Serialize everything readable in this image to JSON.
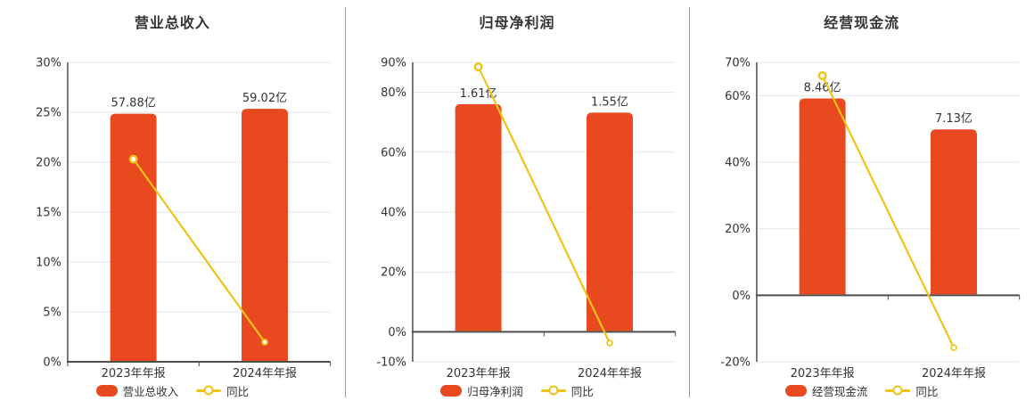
{
  "colors": {
    "bar": "#e8491f",
    "line": "#f0c416",
    "grid": "#e0e6f2",
    "axis": "#4d4d4d",
    "text": "#333333",
    "divider": "#9a9a9a"
  },
  "chart_data": [
    {
      "type": "bar+line",
      "title": "营业总收入",
      "categories": [
        "2023年年报",
        "2024年年报"
      ],
      "bar_series": {
        "name": "营业总收入",
        "unit": "亿",
        "values": [
          57.88,
          59.02
        ],
        "labels": [
          "57.88亿",
          "59.02亿"
        ]
      },
      "line_series": {
        "name": "同比",
        "values_pct": [
          20.3,
          1.97
        ]
      },
      "y_axis": {
        "min": 0,
        "max": 30,
        "ticks": [
          30,
          25,
          20,
          15,
          10,
          5,
          0
        ],
        "labels": [
          "30%",
          "25%",
          "20%",
          "15%",
          "10%",
          "5%",
          "0%"
        ]
      },
      "legend": [
        "营业总收入",
        "同比"
      ]
    },
    {
      "type": "bar+line",
      "title": "归母净利润",
      "categories": [
        "2023年年报",
        "2024年年报"
      ],
      "bar_series": {
        "name": "归母净利润",
        "unit": "亿",
        "values": [
          1.61,
          1.55
        ],
        "labels": [
          "1.61亿",
          "1.55亿"
        ]
      },
      "line_series": {
        "name": "同比",
        "values_pct": [
          88.5,
          -3.73
        ]
      },
      "y_axis": {
        "min": -10,
        "max": 90,
        "ticks": [
          90,
          80,
          60,
          40,
          20,
          0,
          -10
        ],
        "labels": [
          "90%",
          "80%",
          "60%",
          "40%",
          "20%",
          "0%",
          "-10%"
        ]
      },
      "legend": [
        "归母净利润",
        "同比"
      ]
    },
    {
      "type": "bar+line",
      "title": "经营现金流",
      "categories": [
        "2023年年报",
        "2024年年报"
      ],
      "bar_series": {
        "name": "经营现金流",
        "unit": "亿",
        "values": [
          8.46,
          7.13
        ],
        "labels": [
          "8.46亿",
          "7.13亿"
        ]
      },
      "line_series": {
        "name": "同比",
        "values_pct": [
          66.0,
          -15.72
        ]
      },
      "y_axis": {
        "min": -20,
        "max": 70,
        "ticks": [
          70,
          60,
          40,
          20,
          0,
          -20
        ],
        "labels": [
          "70%",
          "60%",
          "40%",
          "20%",
          "0%",
          "-20%"
        ]
      },
      "legend": [
        "经营现金流",
        "同比"
      ]
    }
  ]
}
